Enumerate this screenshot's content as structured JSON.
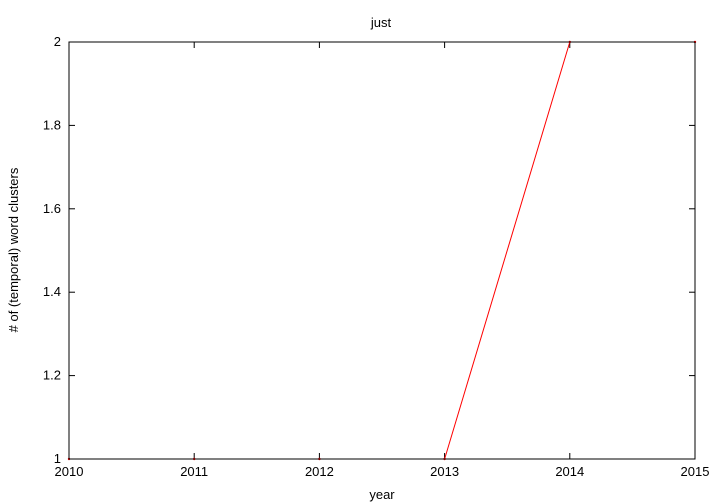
{
  "chart_data": {
    "type": "line",
    "title": "just",
    "xlabel": "year",
    "ylabel": "# of (temporal) word clusters",
    "xlim": [
      2010,
      2015
    ],
    "ylim": [
      1,
      2
    ],
    "x_ticks": [
      "2010",
      "2011",
      "2012",
      "2013",
      "2014",
      "2015"
    ],
    "y_ticks": [
      "1",
      "1.2",
      "1.4",
      "1.6",
      "1.8",
      "2"
    ],
    "grid": false,
    "legend": "none",
    "series": [
      {
        "color": "#ff0000",
        "x": [
          2010,
          2011,
          2012,
          2013,
          2014,
          2015
        ],
        "values": [
          1,
          1,
          1,
          1,
          2,
          2
        ]
      }
    ]
  }
}
